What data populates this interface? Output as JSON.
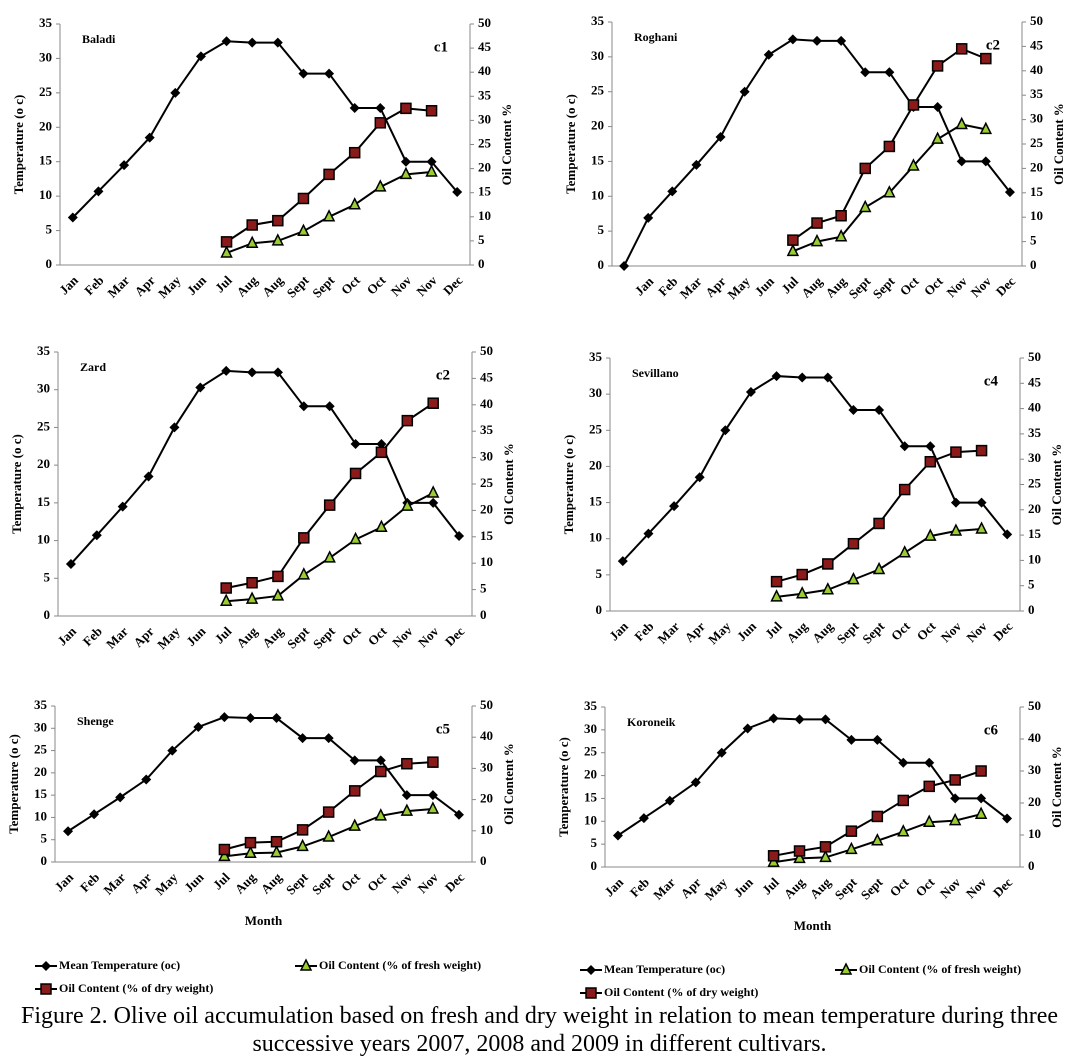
{
  "chart_data": [
    {
      "type": "line",
      "title": "Baladi",
      "label": "c1",
      "categories": [
        "Jan",
        "Feb",
        "Mar",
        "Apr",
        "May",
        "Jun",
        "Jul",
        "Aug",
        "Aug",
        "Sept",
        "Sept",
        "Oct",
        "Oct",
        "Nov",
        "Nov",
        "Dec"
      ],
      "ylabel": "Temperature (o c)",
      "y2label": "Oil Content %",
      "ylim": [
        0,
        35
      ],
      "yticks": [
        0,
        5,
        10,
        15,
        20,
        25,
        30,
        35
      ],
      "y2lim": [
        0,
        50
      ],
      "y2ticks": [
        0,
        5,
        10,
        15,
        20,
        25,
        30,
        35,
        40,
        45,
        50
      ],
      "series": [
        {
          "name": "Mean Temperature (oc)",
          "color": "#000000",
          "marker": "diamond",
          "marker_color": "#000000",
          "values": [
            6.9,
            10.7,
            14.5,
            18.5,
            25,
            30.3,
            32.5,
            32.3,
            32.3,
            27.8,
            27.8,
            22.8,
            22.8,
            15,
            15,
            10.6
          ]
        },
        {
          "name": "Oil Content (% of fresh weight)",
          "color": "#000000",
          "marker": "triangle",
          "marker_color": "#9acd32",
          "axis": "y2",
          "values": [
            null,
            null,
            null,
            null,
            null,
            null,
            2.5,
            4.5,
            5,
            7,
            10,
            12.5,
            16.2,
            18.8,
            19.3,
            null
          ]
        },
        {
          "name": "Oil Content (% of dry weight)",
          "color": "#000000",
          "marker": "square",
          "marker_color": "#8b1a1a",
          "axis": "y2",
          "values": [
            null,
            null,
            null,
            null,
            null,
            null,
            4.8,
            8.3,
            9.2,
            13.8,
            18.8,
            23.3,
            29.5,
            32.5,
            32,
            null
          ]
        }
      ]
    },
    {
      "type": "line",
      "title": "Roghani",
      "label": "c2",
      "categories": [
        null,
        "Jan",
        "Feb",
        "Mar",
        "Apr",
        "May",
        "Jun",
        "Jul",
        "Aug",
        "Aug",
        "Sept",
        "Sept",
        "Oct",
        "Oct",
        "Nov",
        "Nov",
        "Dec"
      ],
      "ylabel": "Temperature (o c)",
      "y2label": "Oil Content %",
      "ylim": [
        0,
        35
      ],
      "yticks": [
        0,
        5,
        10,
        15,
        20,
        25,
        30,
        35
      ],
      "y2lim": [
        0,
        50
      ],
      "y2ticks": [
        0,
        5,
        10,
        15,
        20,
        25,
        30,
        35,
        40,
        45,
        50
      ],
      "series": [
        {
          "name": "Mean Temperature (oc)",
          "color": "#000000",
          "marker": "diamond",
          "marker_color": "#000000",
          "values": [
            0,
            6.9,
            10.7,
            14.5,
            18.5,
            25,
            30.3,
            32.5,
            32.3,
            32.3,
            27.8,
            27.8,
            22.8,
            22.8,
            15,
            15,
            10.6
          ]
        },
        {
          "name": "Oil Content (% of fresh weight)",
          "color": "#000000",
          "marker": "triangle",
          "marker_color": "#9acd32",
          "axis": "y2",
          "values": [
            null,
            null,
            null,
            null,
            null,
            null,
            null,
            3,
            5,
            6,
            12,
            15,
            20.5,
            26,
            29,
            28,
            null
          ]
        },
        {
          "name": "Oil Content (% of dry weight)",
          "color": "#000000",
          "marker": "square",
          "marker_color": "#8b1a1a",
          "axis": "y2",
          "values": [
            null,
            null,
            null,
            null,
            null,
            null,
            null,
            5.3,
            8.8,
            10.3,
            20,
            24.5,
            33,
            41,
            44.5,
            42.5,
            null
          ]
        }
      ]
    },
    {
      "type": "line",
      "title": "Zard",
      "label": "c2",
      "categories": [
        "Jan",
        "Feb",
        "Mar",
        "Apr",
        "May",
        "Jun",
        "Jul",
        "Aug",
        "Aug",
        "Sept",
        "Sept",
        "Oct",
        "Oct",
        "Nov",
        "Nov",
        "Dec"
      ],
      "ylabel": "Temperature (o c)",
      "y2label": "Oil Content %",
      "ylim": [
        0,
        35
      ],
      "yticks": [
        0,
        5,
        10,
        15,
        20,
        25,
        30,
        35
      ],
      "y2lim": [
        0,
        50
      ],
      "y2ticks": [
        0,
        5,
        10,
        15,
        20,
        25,
        30,
        35,
        40,
        45,
        50
      ],
      "series": [
        {
          "name": "Mean Temperature (oc)",
          "color": "#000000",
          "marker": "diamond",
          "marker_color": "#000000",
          "values": [
            6.9,
            10.7,
            14.5,
            18.5,
            25,
            30.3,
            32.5,
            32.3,
            32.3,
            27.8,
            27.8,
            22.8,
            22.8,
            15,
            15,
            10.6
          ]
        },
        {
          "name": "Oil Content (% of fresh weight)",
          "color": "#000000",
          "marker": "triangle",
          "marker_color": "#9acd32",
          "axis": "y2",
          "values": [
            null,
            null,
            null,
            null,
            null,
            null,
            2.8,
            3.2,
            3.8,
            7.8,
            11,
            14.5,
            16.8,
            20.8,
            23.3,
            null
          ]
        },
        {
          "name": "Oil Content (% of dry weight)",
          "color": "#000000",
          "marker": "square",
          "marker_color": "#8b1a1a",
          "axis": "y2",
          "values": [
            null,
            null,
            null,
            null,
            null,
            null,
            5.3,
            6.3,
            7.5,
            14.8,
            21,
            27,
            31,
            37,
            40.3,
            null
          ]
        }
      ]
    },
    {
      "type": "line",
      "title": "Sevillano",
      "label": "c4",
      "categories": [
        "Jan",
        "Feb",
        "Mar",
        "Apr",
        "May",
        "Jun",
        "Jul",
        "Aug",
        "Aug",
        "Sept",
        "Sept",
        "Oct",
        "Oct",
        "Nov",
        "Nov",
        "Dec"
      ],
      "ylabel": "Temperature (o c)",
      "y2label": "Oil Content %",
      "ylim": [
        0,
        35
      ],
      "yticks": [
        0,
        5,
        10,
        15,
        20,
        25,
        30,
        35
      ],
      "y2lim": [
        0,
        50
      ],
      "y2ticks": [
        0,
        5,
        10,
        15,
        20,
        25,
        30,
        35,
        40,
        45,
        50
      ],
      "series": [
        {
          "name": "Mean Temperature (oc)",
          "color": "#000000",
          "marker": "diamond",
          "marker_color": "#000000",
          "values": [
            6.9,
            10.7,
            14.5,
            18.5,
            25,
            30.3,
            32.5,
            32.3,
            32.3,
            27.8,
            27.8,
            22.8,
            22.8,
            15,
            15,
            10.6
          ]
        },
        {
          "name": "Oil Content (% of fresh weight)",
          "color": "#000000",
          "marker": "triangle",
          "marker_color": "#9acd32",
          "axis": "y2",
          "values": [
            null,
            null,
            null,
            null,
            null,
            null,
            2.8,
            3.4,
            4.2,
            6.2,
            8.2,
            11.5,
            14.8,
            15.8,
            16.2,
            null
          ]
        },
        {
          "name": "Oil Content (% of dry weight)",
          "color": "#000000",
          "marker": "square",
          "marker_color": "#8b1a1a",
          "axis": "y2",
          "values": [
            null,
            null,
            null,
            null,
            null,
            null,
            5.8,
            7.2,
            9.3,
            13.3,
            17.3,
            24,
            29.5,
            31.4,
            31.7,
            null
          ]
        }
      ]
    },
    {
      "type": "line",
      "title": "Shenge",
      "label": "c5",
      "xlabel": "Month",
      "categories": [
        "Jan",
        "Feb",
        "Mar",
        "Apr",
        "May",
        "Jun",
        "Jul",
        "Aug",
        "Aug",
        "Sept",
        "Sept",
        "Oct",
        "Oct",
        "Nov",
        "Nov",
        "Dec"
      ],
      "ylabel": "Temperature (o c)",
      "y2label": "Oil Content %",
      "ylim": [
        0,
        35
      ],
      "yticks": [
        0,
        5,
        10,
        15,
        20,
        25,
        30,
        35
      ],
      "y2lim": [
        0,
        50
      ],
      "y2ticks": [
        0,
        10,
        20,
        30,
        40,
        50
      ],
      "series": [
        {
          "name": "Mean Temperature (oc)",
          "color": "#000000",
          "marker": "diamond",
          "marker_color": "#000000",
          "values": [
            6.9,
            10.7,
            14.5,
            18.5,
            25,
            30.3,
            32.5,
            32.3,
            32.3,
            27.8,
            27.8,
            22.8,
            22.8,
            15,
            15,
            10.6
          ]
        },
        {
          "name": "Oil Content (% of fresh weight)",
          "color": "#000000",
          "marker": "triangle",
          "marker_color": "#9acd32",
          "axis": "y2",
          "values": [
            null,
            null,
            null,
            null,
            null,
            null,
            1.8,
            2.8,
            3,
            5,
            8,
            11.5,
            14.8,
            16.3,
            17,
            null
          ]
        },
        {
          "name": "Oil Content (% of dry weight)",
          "color": "#000000",
          "marker": "square",
          "marker_color": "#8b1a1a",
          "axis": "y2",
          "values": [
            null,
            null,
            null,
            null,
            null,
            null,
            4,
            6.2,
            6.5,
            10.3,
            16,
            22.8,
            29,
            31.5,
            32,
            null
          ]
        }
      ]
    },
    {
      "type": "line",
      "title": "Koroneik",
      "label": "c6",
      "xlabel": "Month",
      "categories": [
        "Jan",
        "Feb",
        "Mar",
        "Apr",
        "May",
        "Jun",
        "Jul",
        "Aug",
        "Aug",
        "Sept",
        "Sept",
        "Oct",
        "Oct",
        "Nov",
        "Nov",
        "Dec"
      ],
      "ylabel": "Temperature (o c)",
      "y2label": "Oil Content %",
      "ylim": [
        0,
        35
      ],
      "yticks": [
        0,
        5,
        10,
        15,
        20,
        25,
        30,
        35
      ],
      "y2lim": [
        0,
        50
      ],
      "y2ticks": [
        0,
        10,
        20,
        30,
        40,
        50
      ],
      "series": [
        {
          "name": "Mean Temperature (oc)",
          "color": "#000000",
          "marker": "diamond",
          "marker_color": "#000000",
          "values": [
            6.9,
            10.7,
            14.5,
            18.5,
            25,
            30.3,
            32.5,
            32.3,
            32.3,
            27.8,
            27.8,
            22.8,
            22.8,
            15,
            15,
            10.6
          ]
        },
        {
          "name": "Oil Content (% of fresh weight)",
          "color": "#000000",
          "marker": "triangle",
          "marker_color": "#9acd32",
          "axis": "y2",
          "values": [
            null,
            null,
            null,
            null,
            null,
            null,
            1.5,
            2.7,
            3,
            5.5,
            8.2,
            11,
            14,
            14.5,
            16.5,
            null
          ]
        },
        {
          "name": "Oil Content (% of dry weight)",
          "color": "#000000",
          "marker": "square",
          "marker_color": "#8b1a1a",
          "axis": "y2",
          "values": [
            null,
            null,
            null,
            null,
            null,
            null,
            3.5,
            5,
            6.3,
            11.2,
            15.8,
            20.8,
            25.2,
            27.2,
            30,
            null
          ]
        }
      ]
    }
  ],
  "figure_caption": "Figure 2. Olive oil accumulation based on fresh and dry weight in relation to mean temperature during three successive years 2007, 2008 and 2009 in different cultivars."
}
